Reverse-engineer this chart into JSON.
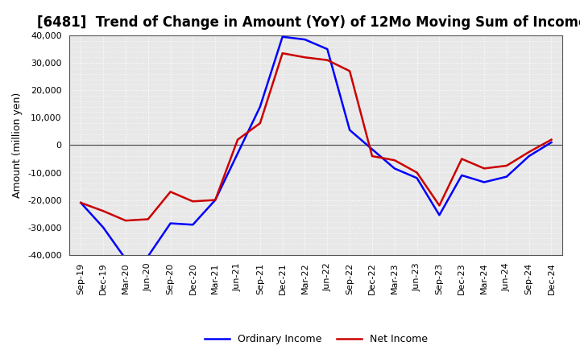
{
  "title": "[6481]  Trend of Change in Amount (YoY) of 12Mo Moving Sum of Incomes",
  "ylabel": "Amount (million yen)",
  "x_labels": [
    "Sep-19",
    "Dec-19",
    "Mar-20",
    "Jun-20",
    "Sep-20",
    "Dec-20",
    "Mar-21",
    "Jun-21",
    "Sep-21",
    "Dec-21",
    "Mar-22",
    "Jun-22",
    "Sep-22",
    "Dec-22",
    "Mar-23",
    "Jun-23",
    "Sep-23",
    "Dec-23",
    "Mar-24",
    "Jun-24",
    "Sep-24",
    "Dec-24"
  ],
  "ordinary_income": [
    -21000,
    -30000,
    -41500,
    -40500,
    -28500,
    -29000,
    -20000,
    -3000,
    14000,
    39500,
    38500,
    35000,
    5500,
    -1500,
    -8500,
    -12000,
    -25500,
    -11000,
    -13500,
    -11500,
    -4000,
    1000
  ],
  "net_income": [
    -21000,
    -24000,
    -27500,
    -27000,
    -17000,
    -20500,
    -20000,
    2000,
    8000,
    33500,
    32000,
    31000,
    27000,
    -4000,
    -5500,
    -10000,
    -22000,
    -5000,
    -8500,
    -7500,
    -2500,
    2000
  ],
  "ordinary_color": "#0000ff",
  "net_color": "#cc0000",
  "ylim": [
    -40000,
    40000
  ],
  "yticks": [
    -40000,
    -30000,
    -20000,
    -10000,
    0,
    10000,
    20000,
    30000,
    40000
  ],
  "plot_bg_color": "#e8e8e8",
  "fig_bg_color": "#ffffff",
  "grid_color": "#ffffff",
  "title_fontsize": 12,
  "label_fontsize": 9,
  "tick_fontsize": 8,
  "legend_fontsize": 9,
  "line_width": 1.8
}
